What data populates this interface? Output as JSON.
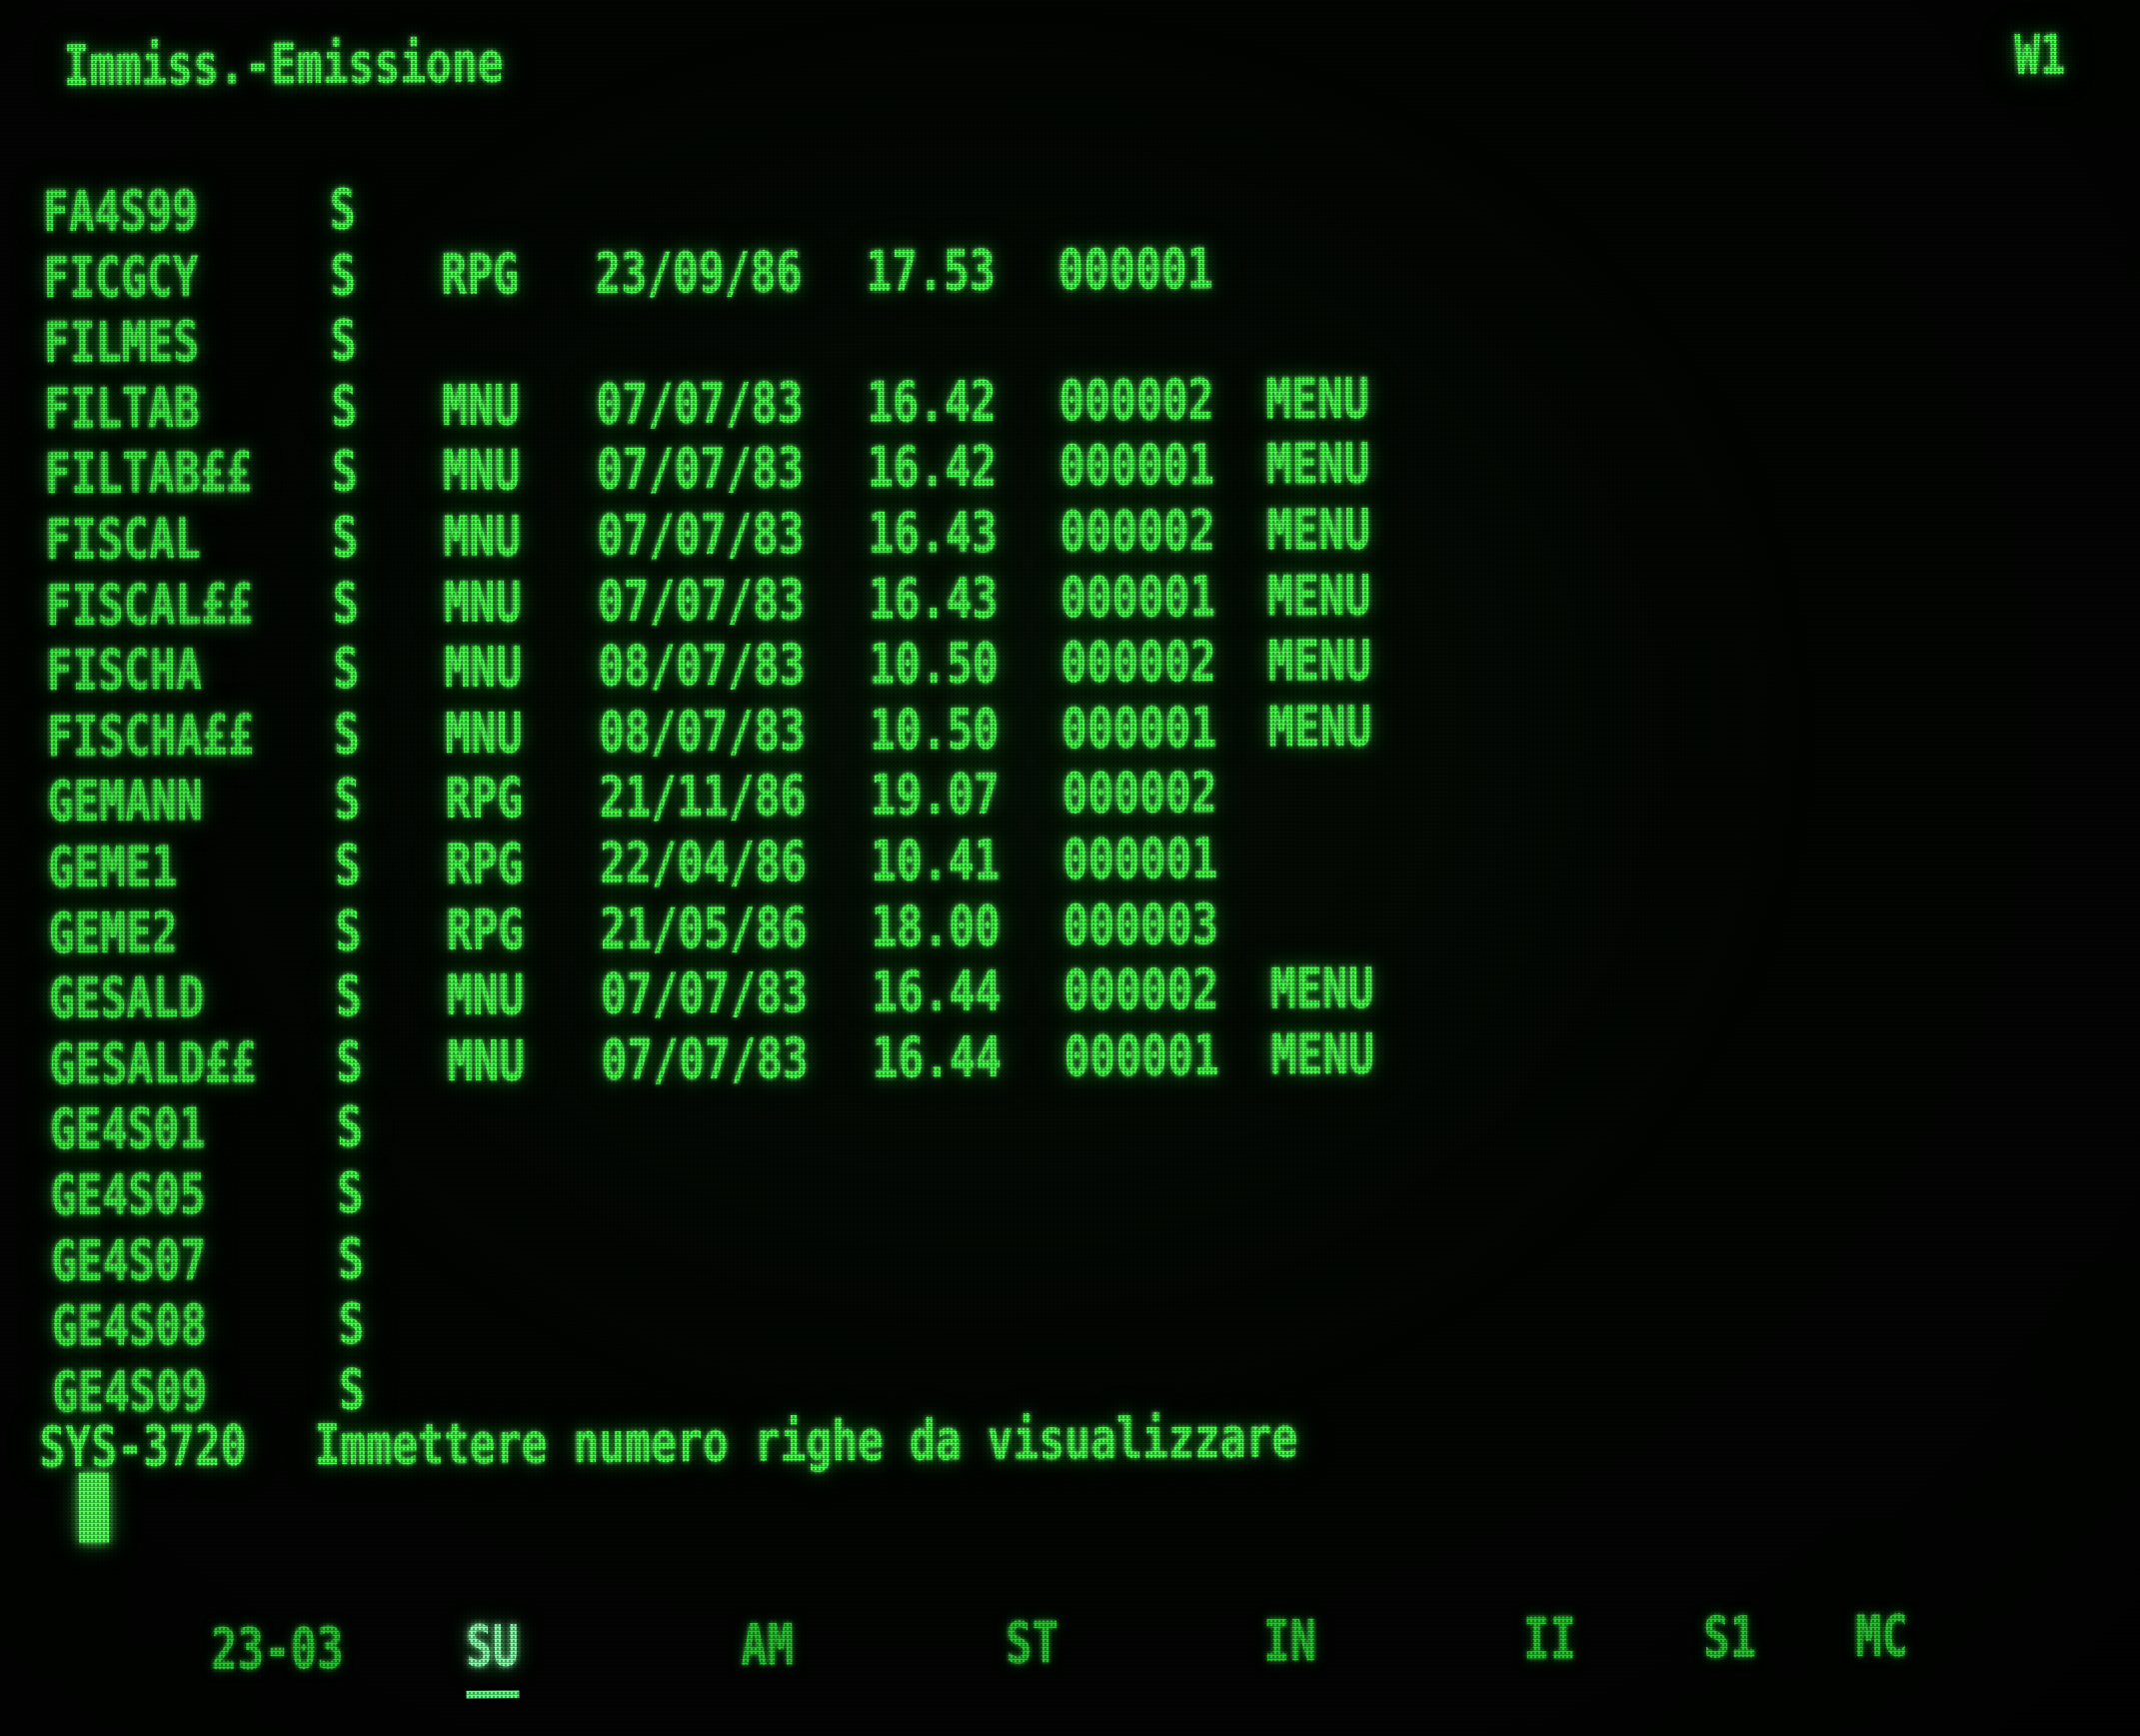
{
  "screen": {
    "title": "Immiss.-Emissione",
    "workstation_id": "W1"
  },
  "table": {
    "rows": [
      {
        "name": "FA4S99",
        "s": "S"
      },
      {
        "name": "FICGCY",
        "s": "S",
        "type": "RPG",
        "date": "23/09/86",
        "time": "17.53",
        "count": "000001"
      },
      {
        "name": "FILMES",
        "s": "S"
      },
      {
        "name": "FILTAB",
        "s": "S",
        "type": "MNU",
        "date": "07/07/83",
        "time": "16.42",
        "count": "000002",
        "menu": "MENU"
      },
      {
        "name": "FILTAB££",
        "s": "S",
        "type": "MNU",
        "date": "07/07/83",
        "time": "16.42",
        "count": "000001",
        "menu": "MENU"
      },
      {
        "name": "FISCAL",
        "s": "S",
        "type": "MNU",
        "date": "07/07/83",
        "time": "16.43",
        "count": "000002",
        "menu": "MENU"
      },
      {
        "name": "FISCAL££",
        "s": "S",
        "type": "MNU",
        "date": "07/07/83",
        "time": "16.43",
        "count": "000001",
        "menu": "MENU"
      },
      {
        "name": "FISCHA",
        "s": "S",
        "type": "MNU",
        "date": "08/07/83",
        "time": "10.50",
        "count": "000002",
        "menu": "MENU"
      },
      {
        "name": "FISCHA££",
        "s": "S",
        "type": "MNU",
        "date": "08/07/83",
        "time": "10.50",
        "count": "000001",
        "menu": "MENU"
      },
      {
        "name": "GEMANN",
        "s": "S",
        "type": "RPG",
        "date": "21/11/86",
        "time": "19.07",
        "count": "000002"
      },
      {
        "name": "GEME1",
        "s": "S",
        "type": "RPG",
        "date": "22/04/86",
        "time": "10.41",
        "count": "000001"
      },
      {
        "name": "GEME2",
        "s": "S",
        "type": "RPG",
        "date": "21/05/86",
        "time": "18.00",
        "count": "000003"
      },
      {
        "name": "GESALD",
        "s": "S",
        "type": "MNU",
        "date": "07/07/83",
        "time": "16.44",
        "count": "000002",
        "menu": "MENU"
      },
      {
        "name": "GESALD££",
        "s": "S",
        "type": "MNU",
        "date": "07/07/83",
        "time": "16.44",
        "count": "000001",
        "menu": "MENU"
      },
      {
        "name": "GE4S01",
        "s": "S"
      },
      {
        "name": "GE4S05",
        "s": "S"
      },
      {
        "name": "GE4S07",
        "s": "S"
      },
      {
        "name": "GE4S08",
        "s": "S"
      },
      {
        "name": "GE4S09",
        "s": "S"
      }
    ]
  },
  "message": {
    "code": "SYS-3720",
    "text": "Immettere numero righe da visualizzare"
  },
  "status_bar": {
    "cursor_position": "23-03",
    "indicators": [
      {
        "label": "SU",
        "bright": true
      },
      {
        "label": "AM",
        "bright": false
      },
      {
        "label": "ST",
        "bright": false
      },
      {
        "label": "IN",
        "bright": false
      },
      {
        "label": "II",
        "bright": false
      },
      {
        "label": "S1",
        "bright": false
      },
      {
        "label": "MC",
        "bright": false
      }
    ]
  },
  "colors": {
    "phosphor_green": "#4dff52",
    "dim_green": "#2fc437",
    "screen_black": "#020402"
  }
}
